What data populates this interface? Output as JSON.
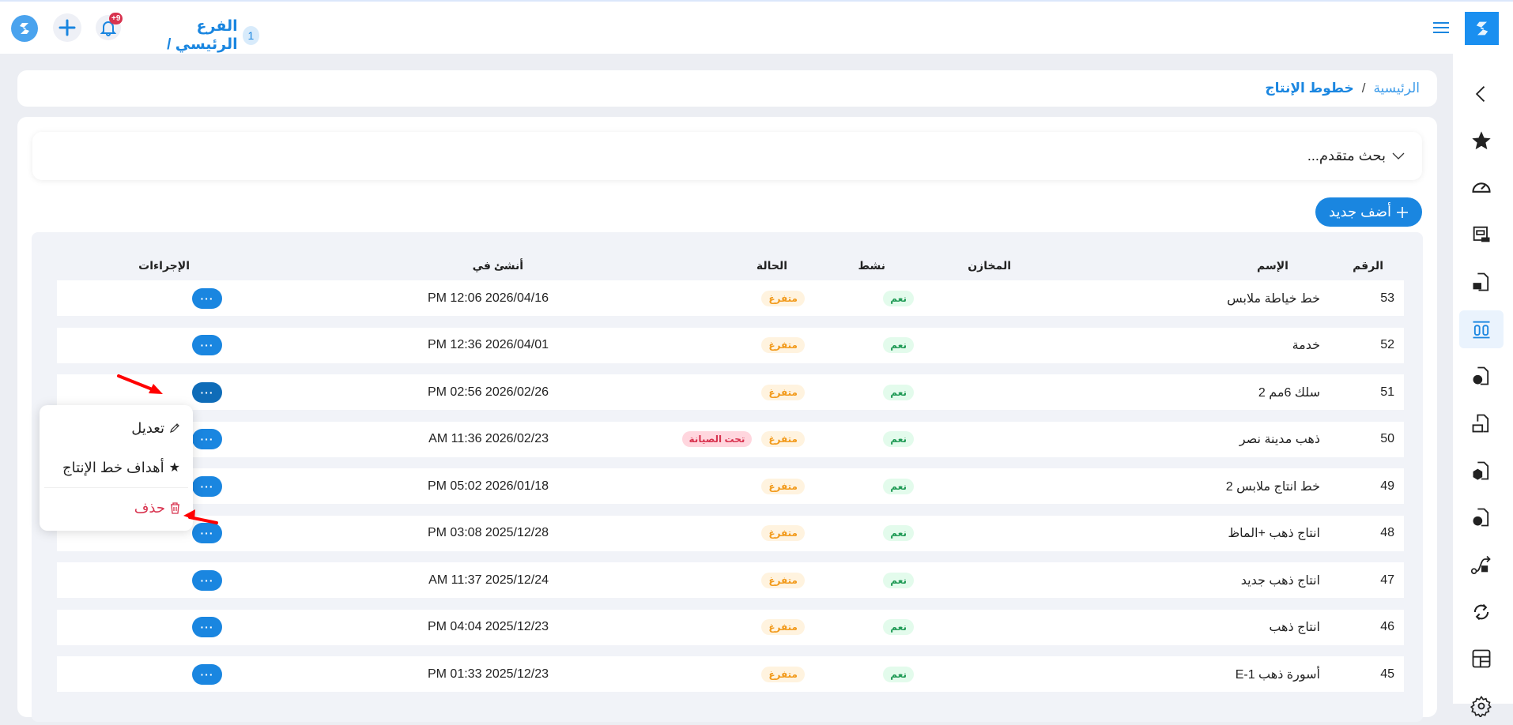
{
  "header": {
    "branch_number": "1",
    "branch_name": "الفرع الرئيسي /",
    "notifications_badge": "+9"
  },
  "breadcrumb": {
    "home": "الرئيسية",
    "separator": "/",
    "current": "خطوط الإنتاج"
  },
  "search": {
    "label": "بحث متقدم..."
  },
  "add_button": {
    "label": "أضف جديد"
  },
  "table": {
    "headers": {
      "number": "الرقم",
      "name": "الإسم",
      "warehouses": "المخازن",
      "active": "نشط",
      "status": "الحالة",
      "created": "أنشئ في",
      "actions": "الإجراءات"
    },
    "rows": [
      {
        "number": "53",
        "name": "خط خياطة ملابس",
        "active": "نعم",
        "status": "متفرغ",
        "extra": "",
        "created": "PM 12:06 2026/04/16"
      },
      {
        "number": "52",
        "name": "خدمة",
        "active": "نعم",
        "status": "متفرغ",
        "extra": "",
        "created": "PM 12:36 2026/04/01"
      },
      {
        "number": "51",
        "name": "سلك 6مم 2",
        "active": "نعم",
        "status": "متفرغ",
        "extra": "",
        "created": "PM 02:56 2026/02/26"
      },
      {
        "number": "50",
        "name": "ذهب مدينة نصر",
        "active": "نعم",
        "status": "متفرغ",
        "extra": "تحت الصيانة",
        "created": "AM 11:36 2026/02/23"
      },
      {
        "number": "49",
        "name": "خط انتاج ملابس 2",
        "active": "نعم",
        "status": "متفرغ",
        "extra": "",
        "created": "PM 05:02 2026/01/18"
      },
      {
        "number": "48",
        "name": "انتاج ذهب +الماظ",
        "active": "نعم",
        "status": "متفرغ",
        "extra": "",
        "created": "PM 03:08 2025/12/28"
      },
      {
        "number": "47",
        "name": "انتاج ذهب جديد",
        "active": "نعم",
        "status": "متفرغ",
        "extra": "",
        "created": "AM 11:37 2025/12/24"
      },
      {
        "number": "46",
        "name": "انتاج ذهب",
        "active": "نعم",
        "status": "متفرغ",
        "extra": "",
        "created": "PM 04:04 2025/12/23"
      },
      {
        "number": "45",
        "name": "أسورة ذهب E-1",
        "active": "نعم",
        "status": "متفرغ",
        "extra": "",
        "created": "PM 01:33 2025/12/23"
      }
    ],
    "actions_label": "···"
  },
  "context_menu": {
    "edit": "تعديل",
    "goals": "أهداف خط الإنتاج",
    "delete": "حذف"
  },
  "colors": {
    "accent": "#1a86e0",
    "active_green": "#1f9a55",
    "status_orange": "#f29a1b",
    "maintenance_red": "#d8334f",
    "annotation_arrow": "#ff0000"
  },
  "sidebar": {
    "icons": [
      "chevron-left-icon",
      "star-icon",
      "dashboard-icon",
      "warehouse-icon",
      "document-briefcase-icon",
      "production-lines-icon",
      "document-code-icon",
      "document-bag-icon",
      "document-box-icon",
      "document-check-icon",
      "workflow-icon",
      "refresh-icon",
      "layout-icon",
      "settings-icon"
    ]
  }
}
